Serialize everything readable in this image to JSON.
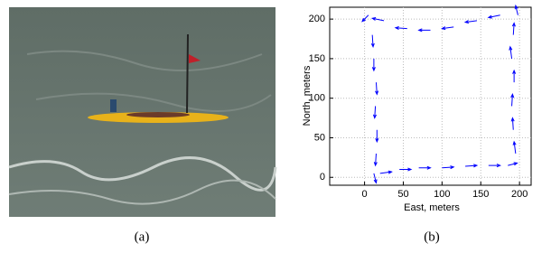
{
  "panel_labels": [
    "(a)",
    "(b)"
  ],
  "chart_data": {
    "type": "quiver",
    "xlabel": "East, meters",
    "ylabel": "North, meters",
    "x": [
      20,
      45,
      70,
      100,
      130,
      160,
      185,
      195,
      192,
      190,
      193,
      190,
      192,
      198,
      175,
      145,
      115,
      85,
      55,
      25,
      5,
      10,
      12,
      15,
      14,
      16,
      15,
      12
    ],
    "y": [
      5,
      10,
      12,
      12,
      14,
      15,
      15,
      30,
      60,
      90,
      120,
      150,
      180,
      205,
      205,
      198,
      190,
      186,
      188,
      198,
      205,
      180,
      150,
      120,
      90,
      60,
      30,
      5
    ],
    "u": [
      15,
      15,
      15,
      15,
      15,
      15,
      12,
      -2,
      -1,
      1,
      0,
      -2,
      1,
      -3,
      -15,
      -15,
      -15,
      -15,
      -15,
      -15,
      -8,
      1,
      0,
      1,
      -1,
      0,
      -1,
      3
    ],
    "v": [
      2,
      0,
      0,
      1,
      1,
      0,
      3,
      15,
      15,
      15,
      15,
      15,
      15,
      12,
      -3,
      -2,
      -2,
      0,
      1,
      3,
      -8,
      -15,
      -15,
      -15,
      -15,
      -15,
      -15,
      -12
    ],
    "color": "#0000ff",
    "xlim": [
      -45,
      215
    ],
    "ylim": [
      -10,
      215
    ],
    "xticks": [
      0,
      50,
      100,
      150,
      200
    ],
    "yticks": [
      0,
      50,
      100,
      150,
      200
    ],
    "grid": true
  }
}
